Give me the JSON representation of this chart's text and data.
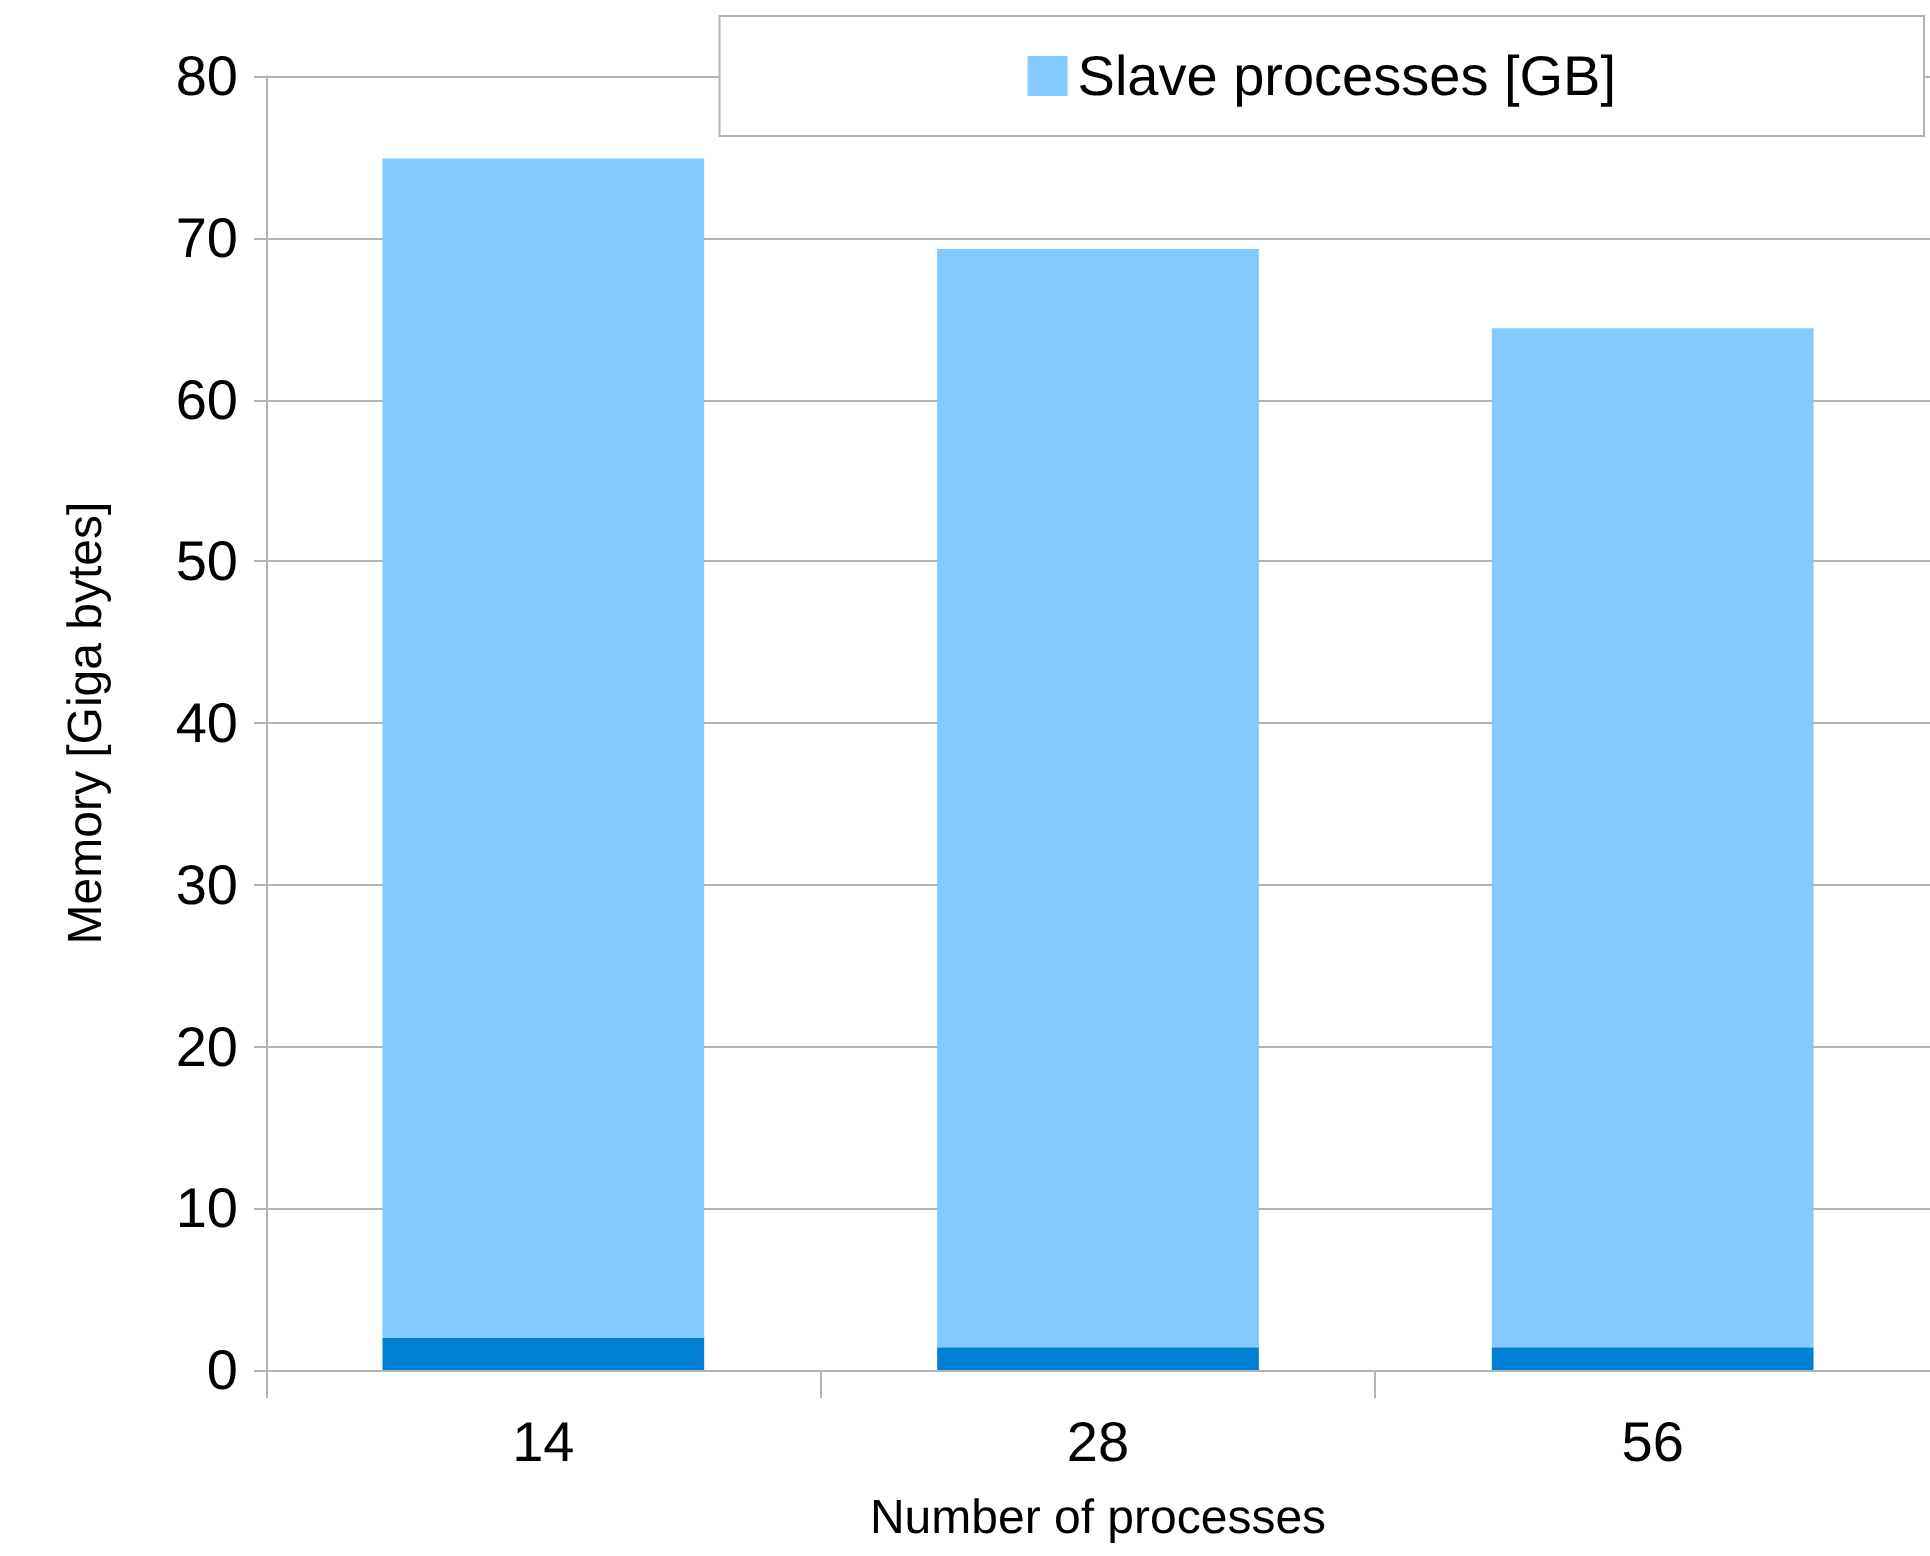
{
  "chart_data": {
    "type": "bar",
    "stacked": true,
    "xlabel": "Number of processes",
    "ylabel": "Memory [Giga bytes]",
    "categories": [
      "14",
      "28",
      "56"
    ],
    "series": [
      {
        "color": "#0080d0",
        "values": [
          2.0,
          1.4,
          1.4
        ]
      },
      {
        "name": "Slave processes [GB]",
        "color": "#83caff",
        "values": [
          72.9,
          67.9,
          63.0
        ]
      }
    ],
    "ylim": [
      0,
      80
    ],
    "yticks": [
      0,
      10,
      20,
      30,
      40,
      50,
      60,
      70,
      80
    ],
    "grid": "y",
    "legend": "top right"
  }
}
